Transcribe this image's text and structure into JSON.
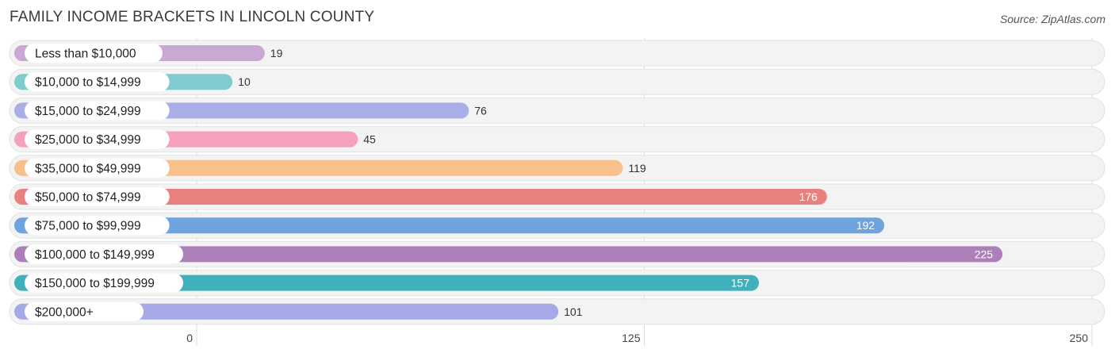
{
  "header": {
    "title": "FAMILY INCOME BRACKETS IN LINCOLN COUNTY",
    "source": "Source: ZipAtlas.com"
  },
  "chart_data": {
    "type": "bar",
    "orientation": "horizontal",
    "title": "FAMILY INCOME BRACKETS IN LINCOLN COUNTY",
    "xlabel": "",
    "ylabel": "",
    "xlim": [
      0,
      250
    ],
    "ticks": [
      0,
      125,
      250
    ],
    "grid": true,
    "categories": [
      "Less than $10,000",
      "$10,000 to $14,999",
      "$15,000 to $24,999",
      "$25,000 to $34,999",
      "$35,000 to $49,999",
      "$50,000 to $74,999",
      "$75,000 to $99,999",
      "$100,000 to $149,999",
      "$150,000 to $199,999",
      "$200,000+"
    ],
    "values": [
      19,
      10,
      76,
      45,
      119,
      176,
      192,
      225,
      157,
      101
    ],
    "colors": [
      "#c9a8d2",
      "#7ecbd0",
      "#a9afe6",
      "#f5a0bd",
      "#f8c08a",
      "#e9827f",
      "#6fa3dd",
      "#ad7fb8",
      "#41b0bd",
      "#a5aae6"
    ]
  }
}
